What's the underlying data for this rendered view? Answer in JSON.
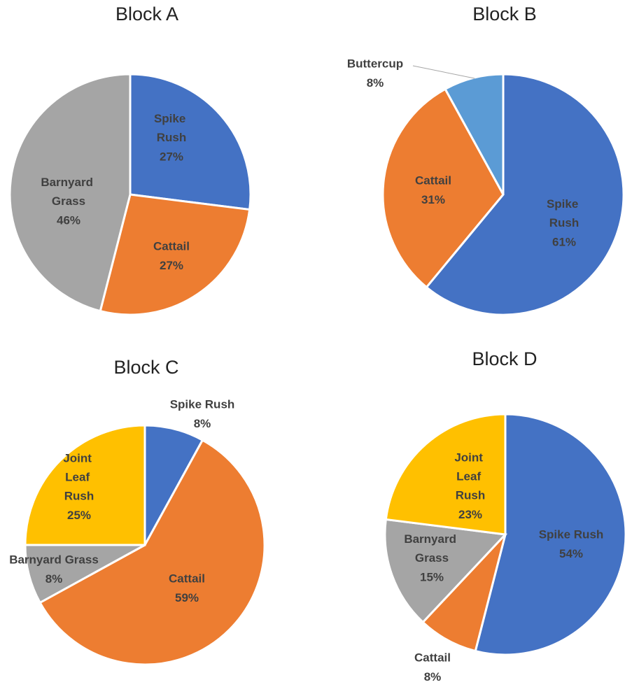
{
  "chart_data": [
    {
      "type": "pie",
      "title": "Block A",
      "categories": [
        "Spike Rush",
        "Cattail",
        "Barnyard Grass"
      ],
      "values": [
        27,
        27,
        46
      ],
      "value_labels": [
        "27%",
        "27%",
        "46%"
      ],
      "colors": [
        "#4472c4",
        "#ed7d31",
        "#a5a5a5"
      ]
    },
    {
      "type": "pie",
      "title": "Block B",
      "categories": [
        "Spike Rush",
        "Cattail",
        "Buttercup"
      ],
      "values": [
        61,
        31,
        8
      ],
      "value_labels": [
        "61%",
        "31%",
        "8%"
      ],
      "colors": [
        "#4472c4",
        "#ed7d31",
        "#5b9bd5"
      ]
    },
    {
      "type": "pie",
      "title": "Block C",
      "categories": [
        "Spike Rush",
        "Cattail",
        "Barnyard Grass",
        "Joint Leaf Rush"
      ],
      "values": [
        8,
        59,
        8,
        25
      ],
      "value_labels": [
        "8%",
        "59%",
        "8%",
        "25%"
      ],
      "colors": [
        "#4472c4",
        "#ed7d31",
        "#a5a5a5",
        "#ffc000"
      ]
    },
    {
      "type": "pie",
      "title": "Block D",
      "categories": [
        "Spike Rush",
        "Cattail",
        "Barnyard Grass",
        "Joint Leaf Rush"
      ],
      "values": [
        54,
        8,
        15,
        23
      ],
      "value_labels": [
        "54%",
        "8%",
        "15%",
        "23%"
      ],
      "colors": [
        "#4472c4",
        "#ed7d31",
        "#a5a5a5",
        "#ffc000"
      ]
    }
  ]
}
